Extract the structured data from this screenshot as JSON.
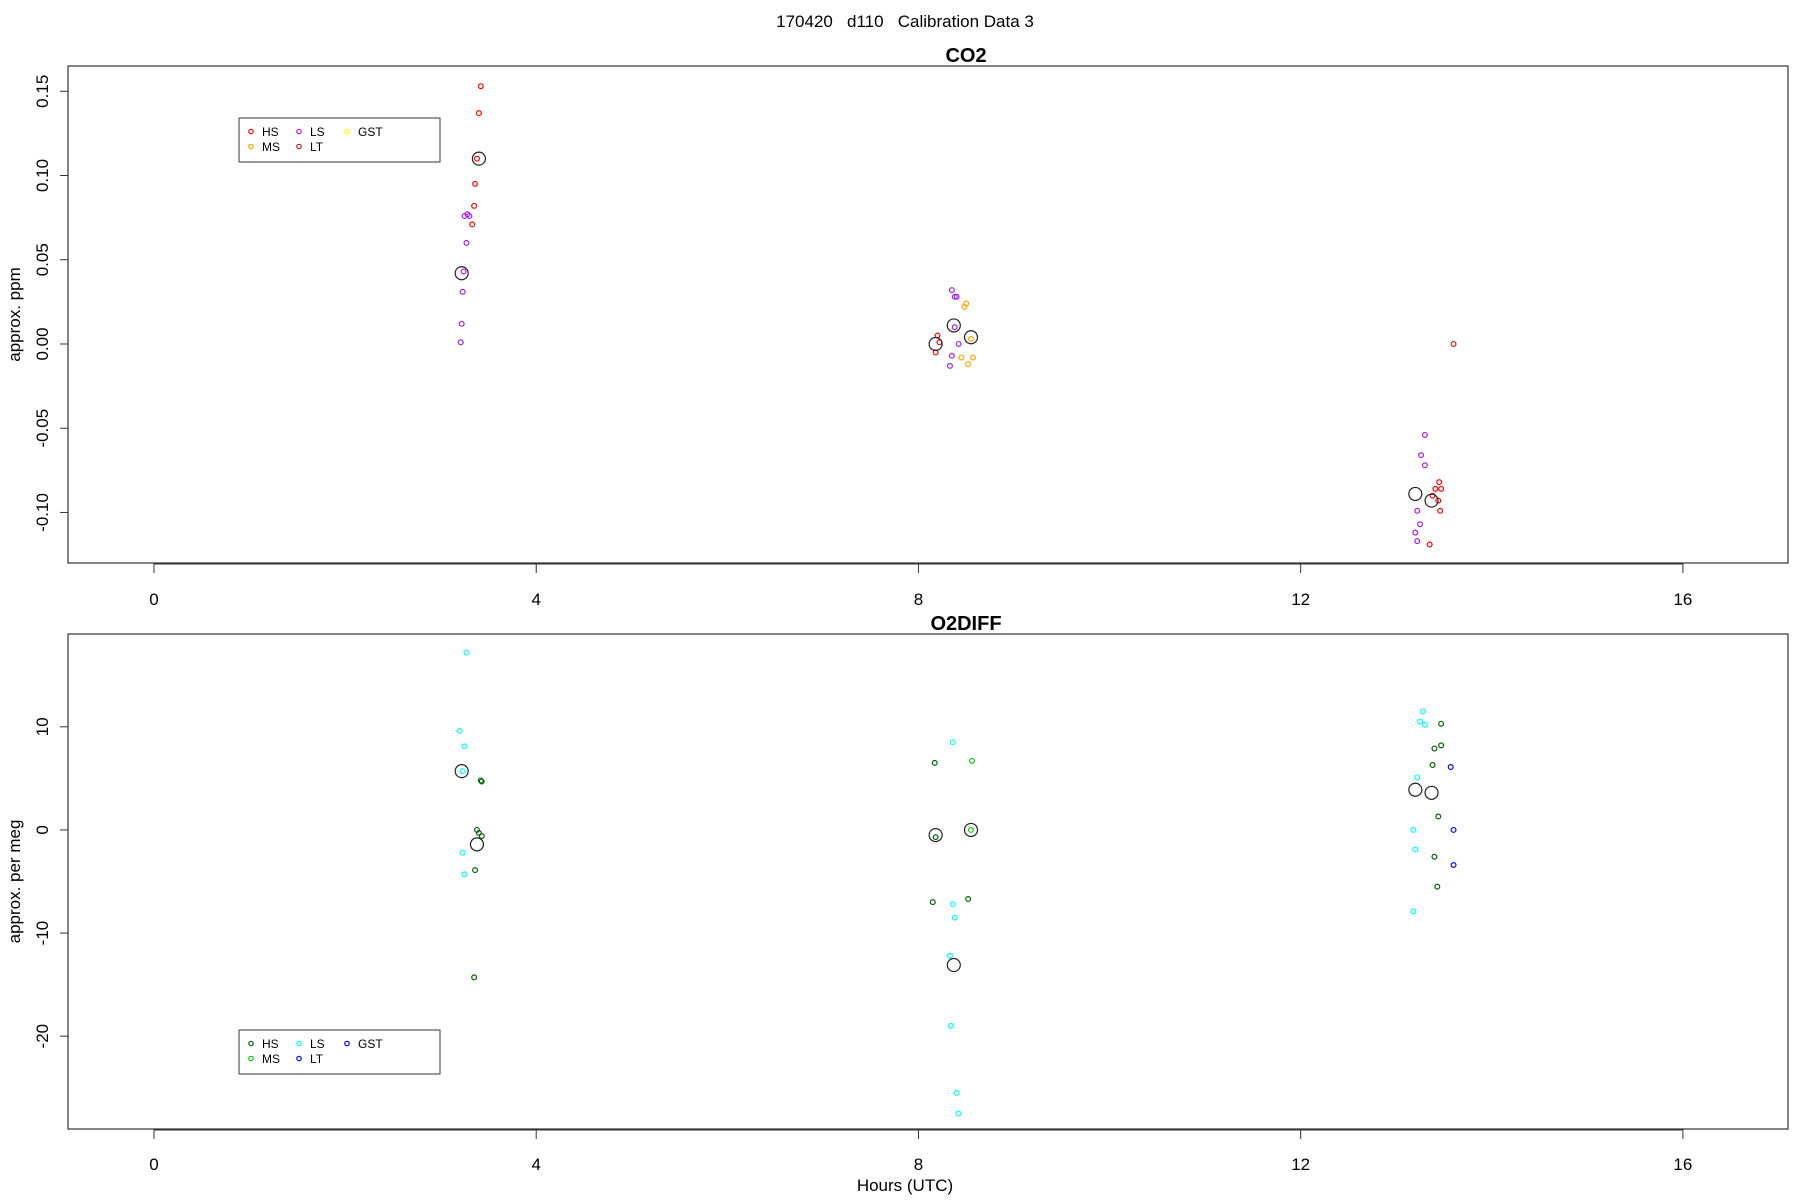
{
  "figure": {
    "title": "170420   d110   Calibration Data 3"
  },
  "chart_data": [
    {
      "type": "scatter",
      "title": "CO2",
      "xlabel": "",
      "ylabel": "approx. ppm",
      "xlim": [
        -0.9,
        17.1
      ],
      "ylim": [
        -0.13,
        0.165
      ],
      "xticks": [
        0,
        4,
        8,
        12,
        16
      ],
      "yticks": [
        -0.1,
        -0.05,
        0.0,
        0.05,
        0.1,
        0.15
      ],
      "ytick_labels": [
        "-0.10",
        "-0.05",
        "0.00",
        "0.05",
        "0.10",
        "0.15"
      ],
      "legend": {
        "placement": "top-left",
        "ncol": 3
      },
      "series": [
        {
          "name": "HS",
          "color": "#ff0000",
          "points": [
            [
              3.42,
              0.153
            ],
            [
              3.4,
              0.137
            ],
            [
              3.38,
              0.11
            ],
            [
              3.36,
              0.095
            ],
            [
              3.35,
              0.082
            ],
            [
              3.33,
              0.071
            ],
            [
              8.2,
              0.005
            ],
            [
              8.22,
              0.001
            ],
            [
              8.18,
              -0.005
            ],
            [
              13.45,
              -0.082
            ],
            [
              13.47,
              -0.086
            ],
            [
              13.41,
              -0.086
            ],
            [
              13.38,
              -0.09
            ],
            [
              13.44,
              -0.093
            ],
            [
              13.46,
              -0.099
            ],
            [
              13.35,
              -0.119
            ]
          ]
        },
        {
          "name": "MS",
          "color": "#ffa500",
          "points": [
            [
              8.5,
              0.024
            ],
            [
              8.48,
              0.022
            ],
            [
              8.55,
              0.003
            ],
            [
              8.45,
              -0.008
            ],
            [
              8.57,
              -0.008
            ],
            [
              8.52,
              -0.012
            ]
          ]
        },
        {
          "name": "LS",
          "color": "#a020f0",
          "points": [
            [
              3.28,
              0.077
            ],
            [
              3.25,
              0.076
            ],
            [
              3.3,
              0.076
            ],
            [
              3.27,
              0.06
            ],
            [
              3.24,
              0.043
            ],
            [
              3.23,
              0.031
            ],
            [
              3.22,
              0.012
            ],
            [
              3.21,
              0.001
            ],
            [
              8.35,
              0.032
            ],
            [
              8.38,
              0.028
            ],
            [
              8.4,
              0.028
            ],
            [
              8.38,
              0.01
            ],
            [
              8.42,
              0.0
            ],
            [
              8.35,
              -0.007
            ],
            [
              8.33,
              -0.013
            ],
            [
              13.3,
              -0.054
            ],
            [
              13.26,
              -0.066
            ],
            [
              13.3,
              -0.072
            ],
            [
              13.22,
              -0.099
            ],
            [
              13.25,
              -0.107
            ],
            [
              13.2,
              -0.112
            ],
            [
              13.22,
              -0.117
            ]
          ]
        },
        {
          "name": "LT",
          "color": "#b22222",
          "points": [
            [
              13.6,
              0.0
            ]
          ]
        },
        {
          "name": "GST",
          "color": "#ffff00",
          "points": []
        }
      ],
      "means": [
        [
          3.22,
          0.042
        ],
        [
          3.4,
          0.11
        ],
        [
          8.18,
          0.0
        ],
        [
          8.37,
          0.011
        ],
        [
          8.55,
          0.004
        ],
        [
          13.2,
          -0.089
        ],
        [
          13.37,
          -0.093
        ]
      ]
    },
    {
      "type": "scatter",
      "title": "O2DIFF",
      "xlabel": "Hours (UTC)",
      "ylabel": "approx. per meg",
      "xlim": [
        -0.9,
        17.1
      ],
      "ylim": [
        -29,
        19
      ],
      "xticks": [
        0,
        4,
        8,
        12,
        16
      ],
      "yticks": [
        -20,
        -10,
        0,
        10
      ],
      "ytick_labels": [
        "-20",
        "-10",
        "0",
        "10"
      ],
      "legend": {
        "placement": "bottom-left",
        "ncol": 3
      },
      "series": [
        {
          "name": "HS",
          "color": "#006400",
          "points": [
            [
              3.42,
              4.8
            ],
            [
              3.43,
              4.7
            ],
            [
              3.38,
              0.0
            ],
            [
              3.4,
              -0.3
            ],
            [
              3.43,
              -0.6
            ],
            [
              3.36,
              -3.9
            ],
            [
              3.35,
              -14.3
            ],
            [
              8.17,
              6.5
            ],
            [
              8.15,
              -7.0
            ],
            [
              8.18,
              -0.7
            ],
            [
              8.52,
              -6.7
            ],
            [
              13.47,
              10.3
            ],
            [
              13.4,
              7.9
            ],
            [
              13.47,
              8.2
            ],
            [
              13.38,
              6.3
            ],
            [
              13.44,
              1.3
            ],
            [
              13.4,
              -2.6
            ],
            [
              13.43,
              -5.5
            ]
          ]
        },
        {
          "name": "MS",
          "color": "#00cd00",
          "points": [
            [
              8.56,
              6.7
            ],
            [
              8.55,
              0.0
            ]
          ]
        },
        {
          "name": "LS",
          "color": "#00ffff",
          "points": [
            [
              3.27,
              17.2
            ],
            [
              3.2,
              9.6
            ],
            [
              3.25,
              8.1
            ],
            [
              3.23,
              5.7
            ],
            [
              3.23,
              -2.2
            ],
            [
              3.25,
              -4.3
            ],
            [
              8.36,
              8.5
            ],
            [
              8.36,
              -7.2
            ],
            [
              8.38,
              -8.5
            ],
            [
              8.33,
              -12.2
            ],
            [
              8.34,
              -19.0
            ],
            [
              8.4,
              -25.5
            ],
            [
              8.42,
              -27.5
            ],
            [
              13.28,
              11.5
            ],
            [
              13.25,
              10.5
            ],
            [
              13.3,
              10.2
            ],
            [
              13.22,
              5.1
            ],
            [
              13.18,
              0.0
            ],
            [
              13.2,
              -1.9
            ],
            [
              13.18,
              -7.9
            ]
          ]
        },
        {
          "name": "LT",
          "color": "#0000ff",
          "points": [
            [
              13.57,
              6.1
            ],
            [
              13.6,
              0.0
            ],
            [
              13.6,
              -3.4
            ]
          ]
        },
        {
          "name": "GST",
          "color": "#0000ff",
          "points": []
        }
      ],
      "means": [
        [
          3.22,
          5.7
        ],
        [
          3.38,
          -1.4
        ],
        [
          8.18,
          -0.5
        ],
        [
          8.37,
          -13.1
        ],
        [
          8.55,
          0.0
        ],
        [
          13.2,
          3.9
        ],
        [
          13.37,
          3.6
        ]
      ]
    }
  ]
}
